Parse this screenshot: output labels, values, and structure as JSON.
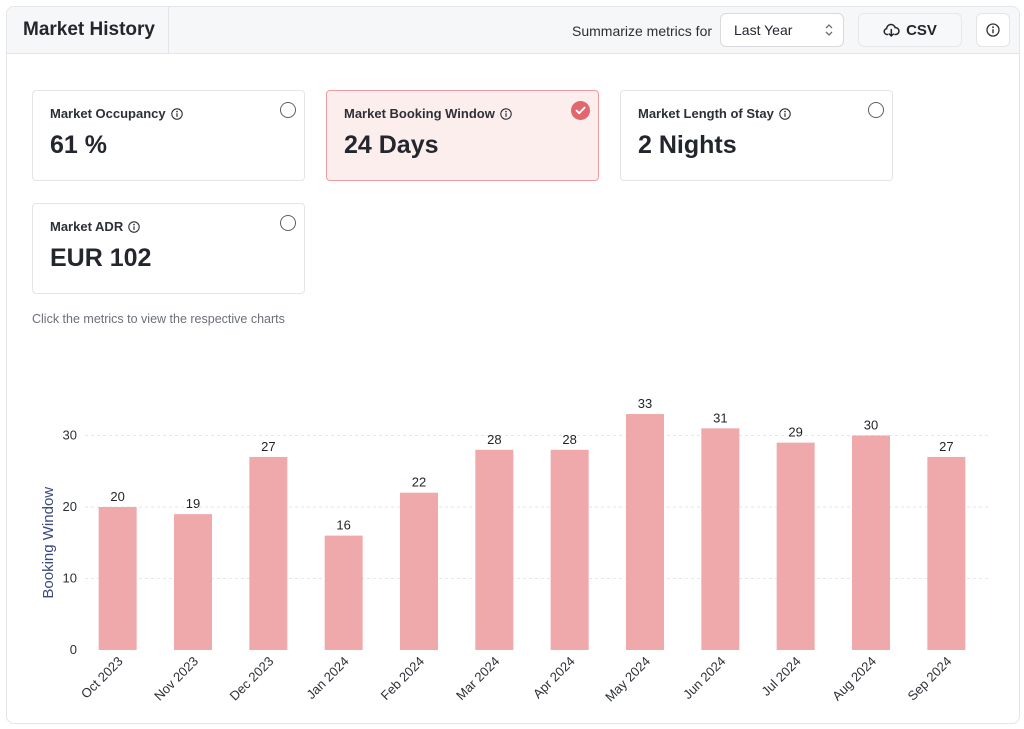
{
  "header": {
    "title": "Market History",
    "summarize_label": "Summarize metrics for",
    "period_select": {
      "selected": "Last Year",
      "icon": "chevron-updown-icon"
    },
    "csv_button": {
      "label": "CSV",
      "icon": "cloud-download-icon"
    },
    "info_button": {
      "icon": "info-icon"
    }
  },
  "metrics": [
    {
      "label": "Market Occupancy",
      "value": "61 %",
      "selected": false
    },
    {
      "label": "Market Booking Window",
      "value": "24 Days",
      "selected": true
    },
    {
      "label": "Market Length of Stay",
      "value": "2 Nights",
      "selected": false
    },
    {
      "label": "Market ADR",
      "value": "EUR 102",
      "selected": false
    }
  ],
  "hint": "Click the metrics to view the respective charts",
  "colors": {
    "bar": "#f0a9ab",
    "selected_bg": "#fdeeee",
    "selected_border": "#ec9ca0",
    "check": "#e0676d"
  },
  "chart_data": {
    "type": "bar",
    "categories": [
      "Oct 2023",
      "Nov 2023",
      "Dec 2023",
      "Jan 2024",
      "Feb 2024",
      "Mar 2024",
      "Apr 2024",
      "May 2024",
      "Jun 2024",
      "Jul 2024",
      "Aug 2024",
      "Sep 2024"
    ],
    "values": [
      20,
      19,
      27,
      16,
      22,
      28,
      28,
      33,
      31,
      29,
      30,
      27
    ],
    "ylabel": "Booking Window",
    "xlabel": "",
    "yticks": [
      0,
      10,
      20,
      30
    ],
    "ylim": [
      0,
      33
    ],
    "grid": true,
    "data_labels": true
  }
}
